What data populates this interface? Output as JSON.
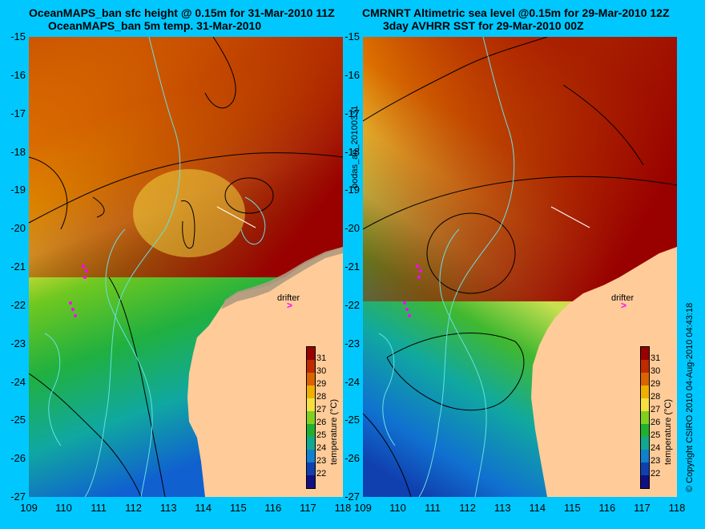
{
  "left_panel": {
    "title_line1": "OceanMAPS_ban sfc height @ 0.15m for 31-Mar-2010 11Z",
    "title_line2": "OceanMAPS_ban 5m temp. 31-Mar-2010"
  },
  "right_panel": {
    "title_line1": "CMRNRT Altimetric sea level  @0.15m  for 29-Mar-2010 12Z",
    "title_line2": "3day AVHRR SST for 29-Mar-2010 00Z"
  },
  "middle_label": "bodas_an_20100331",
  "copyright": "© Copyright CSIRO 2010  04-Aug-2010 04:43:18",
  "drifter_label": "drifter",
  "colorbar": {
    "title": "temperature (°C)",
    "ticks": [
      "31",
      "30",
      "29",
      "28",
      "27",
      "26",
      "25",
      "24",
      "23",
      "22"
    ],
    "colors": [
      "#990000",
      "#bf2a00",
      "#d96400",
      "#f0b000",
      "#f5e040",
      "#80d020",
      "#20b030",
      "#10a890",
      "#1080d0",
      "#1040b0",
      "#101080"
    ]
  },
  "y_ticks": [
    "-15",
    "-16",
    "-17",
    "-18",
    "-19",
    "-20",
    "-21",
    "-22",
    "-23",
    "-24",
    "-25",
    "-26",
    "-27"
  ],
  "x_ticks": [
    "109",
    "110",
    "111",
    "112",
    "113",
    "114",
    "115",
    "116",
    "117",
    "118"
  ],
  "colors": {
    "background": "#00c8ff",
    "land": "#ffcc99",
    "contour": "#000000",
    "bathymetry": "#66e0e0",
    "drifter": "#ff00ff"
  }
}
